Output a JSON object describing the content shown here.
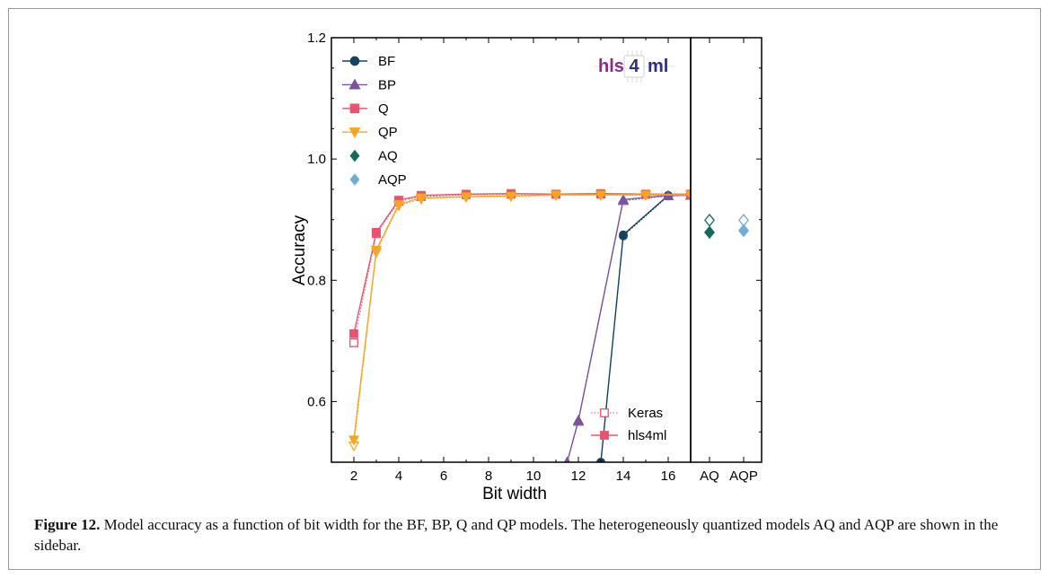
{
  "chart_data": {
    "type": "line",
    "ylabel": "Accuracy",
    "xlabel": "Bit width",
    "xlim": [
      1,
      17
    ],
    "ylim": [
      0.5,
      1.2
    ],
    "xticks": [
      2,
      4,
      6,
      8,
      10,
      12,
      14,
      16
    ],
    "yticks": [
      "0.6",
      "0.8",
      "1.0",
      "1.2"
    ],
    "sidebar_categories": [
      "AQ",
      "AQP"
    ],
    "legend_placement": "top-left",
    "grid": false,
    "series": [
      {
        "name": "BF",
        "color": "#17425f",
        "marker": "circle",
        "keras": {
          "x": [
            13,
            14,
            16,
            17
          ],
          "y": [
            0.5,
            0.873,
            0.939,
            0.941
          ]
        },
        "hls4ml": {
          "x": [
            13,
            14,
            16,
            17
          ],
          "y": [
            0.5,
            0.875,
            0.94,
            0.941
          ]
        }
      },
      {
        "name": "BP",
        "color": "#7b52a0",
        "marker": "triangle-up",
        "keras": {
          "x": [
            11.5,
            12,
            14,
            16,
            17
          ],
          "y": [
            0.5,
            0.567,
            0.931,
            0.939,
            0.94
          ]
        },
        "hls4ml": {
          "x": [
            11.5,
            12,
            14,
            16,
            17
          ],
          "y": [
            0.5,
            0.569,
            0.933,
            0.94,
            0.94
          ]
        }
      },
      {
        "name": "Q",
        "color": "#e8536f",
        "marker": "square",
        "keras": {
          "x": [
            2,
            3,
            4,
            5,
            7,
            9,
            11,
            13,
            15,
            17
          ],
          "y": [
            0.697,
            0.877,
            0.93,
            0.938,
            0.941,
            0.942,
            0.942,
            0.942,
            0.942,
            0.942
          ]
        },
        "hls4ml": {
          "x": [
            2,
            3,
            4,
            5,
            7,
            9,
            11,
            13,
            15,
            17
          ],
          "y": [
            0.712,
            0.879,
            0.932,
            0.94,
            0.942,
            0.943,
            0.942,
            0.943,
            0.942,
            0.942
          ]
        }
      },
      {
        "name": "QP",
        "color": "#f5a623",
        "marker": "triangle-down",
        "keras": {
          "x": [
            2,
            3,
            4,
            5,
            7,
            9,
            11,
            13,
            15,
            17
          ],
          "y": [
            0.527,
            0.846,
            0.923,
            0.934,
            0.937,
            0.938,
            0.94,
            0.94,
            0.94,
            0.941
          ]
        },
        "hls4ml": {
          "x": [
            2,
            3,
            4,
            5,
            7,
            9,
            11,
            13,
            15,
            17
          ],
          "y": [
            0.537,
            0.85,
            0.925,
            0.936,
            0.938,
            0.939,
            0.941,
            0.941,
            0.941,
            0.941
          ]
        }
      },
      {
        "name": "AQ",
        "color": "#156b5b",
        "marker": "diamond",
        "sidebar": "AQ",
        "keras": 0.899,
        "hls4ml": 0.879
      },
      {
        "name": "AQP",
        "color": "#6eadd6",
        "marker": "diamond",
        "sidebar": "AQP",
        "keras": 0.899,
        "hls4ml": 0.882
      }
    ],
    "style_legend": [
      {
        "name": "Keras",
        "color": "#e8536f",
        "style": "dotted-open"
      },
      {
        "name": "hls4ml",
        "color": "#e8536f",
        "style": "solid-filled"
      }
    ]
  },
  "logo": {
    "text_left": "hls",
    "text_box": "4",
    "text_right": "ml",
    "color_left": "#8a2c8c",
    "color_right": "#2f2f7f"
  },
  "caption": {
    "label": "Figure 12.",
    "text": " Model accuracy as a function of bit width for the BF, BP, Q and QP models. The heterogeneously quantized models AQ and AQP are shown in the sidebar."
  }
}
